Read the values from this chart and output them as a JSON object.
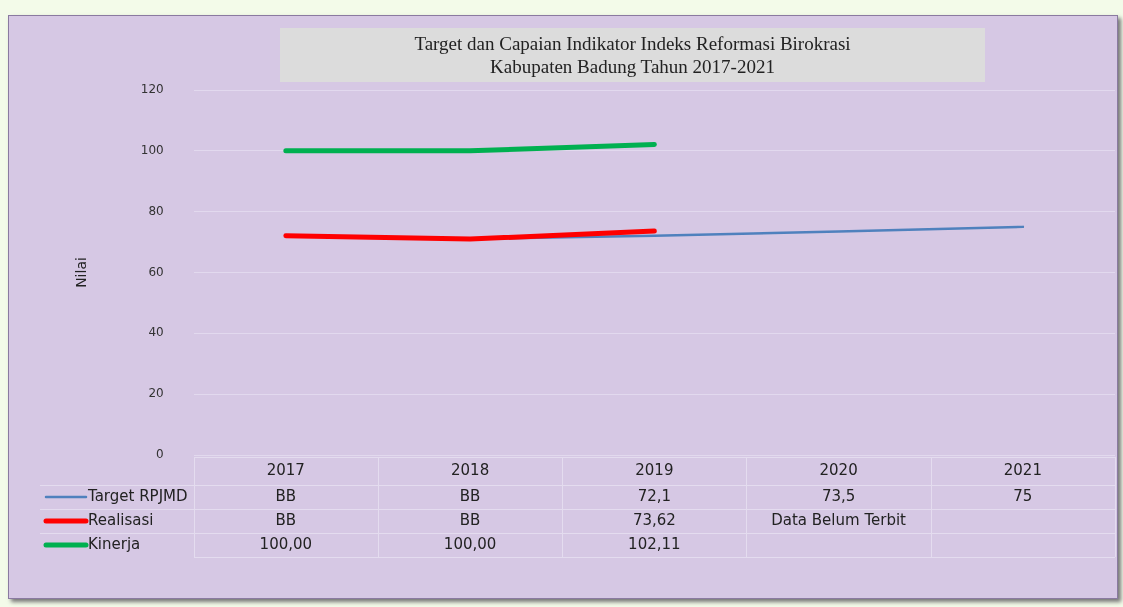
{
  "chart_data": {
    "type": "line",
    "title": "Target dan Capaian Indikator Indeks Reformasi Birokrasi Kabupaten Badung Tahun 2017-2021",
    "ylabel": "Nilai",
    "categories": [
      "2017",
      "2018",
      "2019",
      "2020",
      "2021"
    ],
    "series": [
      {
        "name": "Target RPJMD",
        "color": "#4f81bd",
        "values": [
          null,
          71,
          72.1,
          73.5,
          75
        ],
        "value_labels": [
          "BB",
          "BB",
          "72,1",
          "73,5",
          "75"
        ]
      },
      {
        "name": "Realisasi",
        "color": "#ff0000",
        "values": [
          72.1,
          71,
          73.62,
          null,
          null
        ],
        "value_labels": [
          "BB",
          "BB",
          "73,62",
          "Data Belum Terbit",
          null
        ]
      },
      {
        "name": "Kinerja",
        "color": "#00b050",
        "values": [
          100,
          100,
          102.11,
          null,
          null
        ],
        "value_labels": [
          "100,00",
          "100,00",
          "102,11",
          null,
          null
        ]
      }
    ],
    "ylim": [
      0,
      120
    ],
    "yticks": [
      0,
      20,
      40,
      60,
      80,
      100,
      120
    ],
    "grid": "y",
    "legend": "bottom",
    "marker": "none",
    "line_style": "solid"
  }
}
